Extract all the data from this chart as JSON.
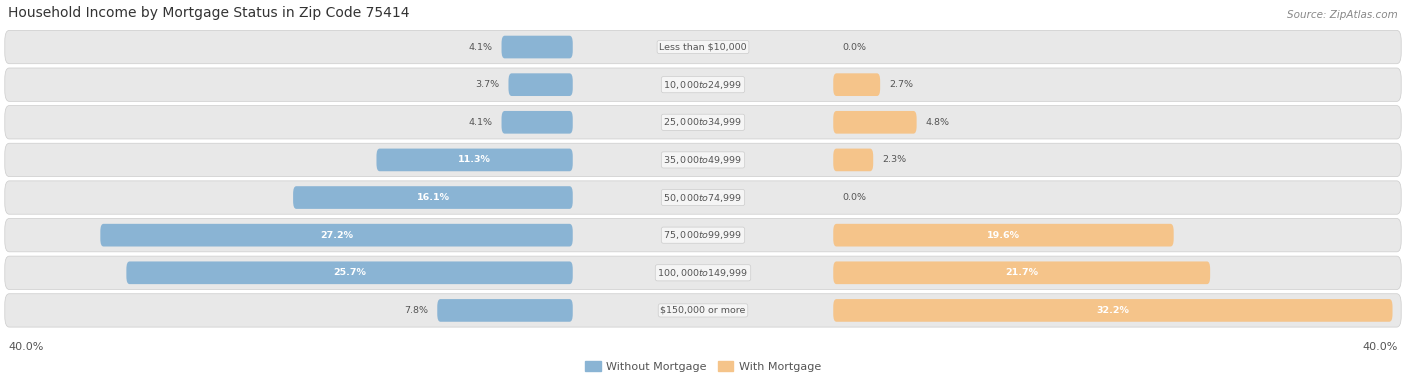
{
  "title": "Household Income by Mortgage Status in Zip Code 75414",
  "source": "Source: ZipAtlas.com",
  "categories": [
    "Less than $10,000",
    "$10,000 to $24,999",
    "$25,000 to $34,999",
    "$35,000 to $49,999",
    "$50,000 to $74,999",
    "$75,000 to $99,999",
    "$100,000 to $149,999",
    "$150,000 or more"
  ],
  "without_mortgage": [
    4.1,
    3.7,
    4.1,
    11.3,
    16.1,
    27.2,
    25.7,
    7.8
  ],
  "with_mortgage": [
    0.0,
    2.7,
    4.8,
    2.3,
    0.0,
    19.6,
    21.7,
    32.2
  ],
  "color_without": "#8ab4d4",
  "color_with": "#f5c48a",
  "xlim": 40.0,
  "legend_without": "Without Mortgage",
  "legend_with": "With Mortgage",
  "bg_color": "#ffffff",
  "row_bg_color": "#e8e8e8",
  "row_bg_color2": "#f0f0f0",
  "label_bg_color": "#f5f5f5",
  "title_color": "#333333",
  "source_color": "#888888",
  "label_color": "#555555",
  "axis_label_color": "#555555"
}
